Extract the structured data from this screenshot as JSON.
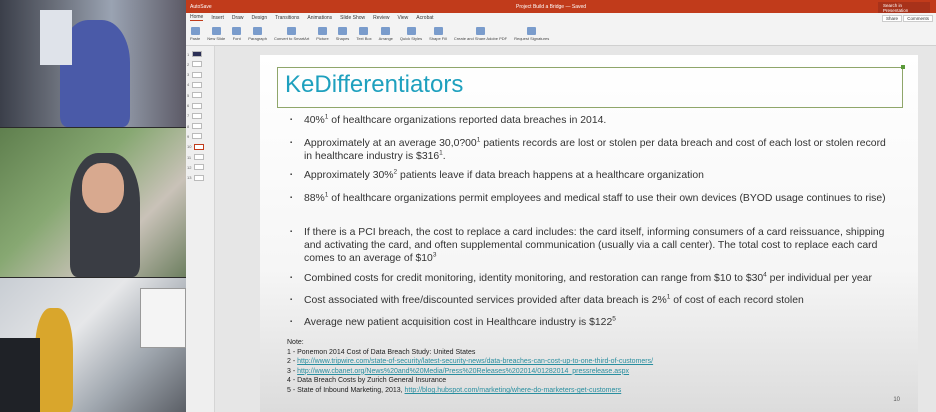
{
  "app": {
    "autosave": "AutoSave",
    "doc_title": "Project Build a Bridge — Saved",
    "search_placeholder": "Search in Presentation",
    "share": "Share",
    "comments": "Comments"
  },
  "tabs": [
    "Home",
    "Insert",
    "Draw",
    "Design",
    "Transitions",
    "Animations",
    "Slide Show",
    "Review",
    "View",
    "Acrobat"
  ],
  "ribbon": [
    "Paste",
    "New Slide",
    "Font",
    "Paragraph",
    "Convert to SmartArt",
    "Picture",
    "Shapes",
    "Text Box",
    "Arrange",
    "Quick Styles",
    "Shape Fill",
    "Create and Share Adobe PDF",
    "Request Signatures"
  ],
  "thumbnails": [
    "1",
    "2",
    "3",
    "4",
    "5",
    "6",
    "7",
    "8",
    "9",
    "10",
    "11",
    "12",
    "13"
  ],
  "selected_slide": "10",
  "slide": {
    "title": "KeDifferentiators",
    "bullets": [
      [
        {
          "t": "40%"
        },
        {
          "s": "1"
        },
        {
          "t": " of healthcare organizations reported data breaches in 2014."
        }
      ],
      [
        {
          "t": "Approximately at an average 30,0?00"
        },
        {
          "s": "1"
        },
        {
          "t": " patients records are lost or stolen per data breach and cost of each lost or stolen record in healthcare industry is $316"
        },
        {
          "s": "1"
        },
        {
          "t": "."
        }
      ],
      [
        {
          "t": "Approximately 30%"
        },
        {
          "s": "2"
        },
        {
          "t": " patients leave if data breach happens at a healthcare organization"
        }
      ],
      [
        {
          "t": "88%"
        },
        {
          "s": "1"
        },
        {
          "t": " of healthcare organizations permit employees and medical staff to use their own devices (BYOD usage continues to rise)"
        }
      ],
      [
        {
          "t": "If there is a PCI breach, the cost to replace a card includes: the card itself, informing consumers of a card reissuance, shipping and activating the card, and often supplemental communication (usually via a call center). The total cost to replace each card comes to an average of $10"
        },
        {
          "s": "3"
        }
      ],
      [
        {
          "t": "Combined costs for credit monitoring, identity monitoring, and restoration can range from $10 to $30"
        },
        {
          "s": "4"
        },
        {
          "t": " per individual per year"
        }
      ],
      [
        {
          "t": "Cost associated with free/discounted services provided after data breach is 2%"
        },
        {
          "s": "1"
        },
        {
          "t": " of cost of each record stolen"
        }
      ],
      [
        {
          "t": "Average new patient acquisition cost in Healthcare industry is $122"
        },
        {
          "s": "5"
        }
      ]
    ],
    "notes_label": "Note:",
    "notes": [
      {
        "prefix": "1 - ",
        "text": "Ponemon 2014 Cost of Data Breach Study: United States",
        "link": ""
      },
      {
        "prefix": "2 - ",
        "text": "",
        "link": "http://www.tripwire.com/state-of-security/latest-security-news/data-breaches-can-cost-up-to-one-third-of-customers/"
      },
      {
        "prefix": "3 - ",
        "text": "",
        "link": "http://www.cbanet.org/News%20and%20Media/Press%20Releases%202014/01282014_pressrelease.aspx"
      },
      {
        "prefix": "4 - ",
        "text": "Data Breach Costs by Zurich General Insurance",
        "link": ""
      },
      {
        "prefix": "5 - ",
        "text": "State of Inbound Marketing, 2013, ",
        "link": "http://blog.hubspot.com/marketing/where-do-marketers-get-customers"
      }
    ],
    "page_number": "10"
  },
  "colors": {
    "accent": "#c13b1b",
    "title": "#1ea0be",
    "link": "#2a8fa0"
  }
}
